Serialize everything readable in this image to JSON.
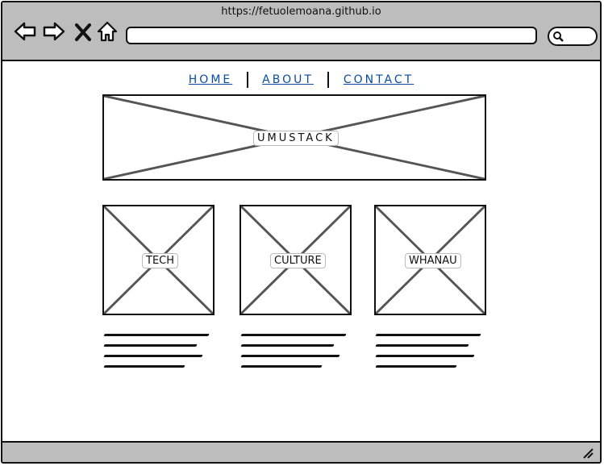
{
  "browser": {
    "url": "https://fetuolemoana.github.io"
  },
  "nav": {
    "home": "HOME",
    "about": "ABOUT",
    "contact": "CONTACT"
  },
  "hero": {
    "label": "UMUSTACK"
  },
  "cards": [
    {
      "label": "TECH"
    },
    {
      "label": "CULTURE"
    },
    {
      "label": "WHANAU"
    }
  ]
}
